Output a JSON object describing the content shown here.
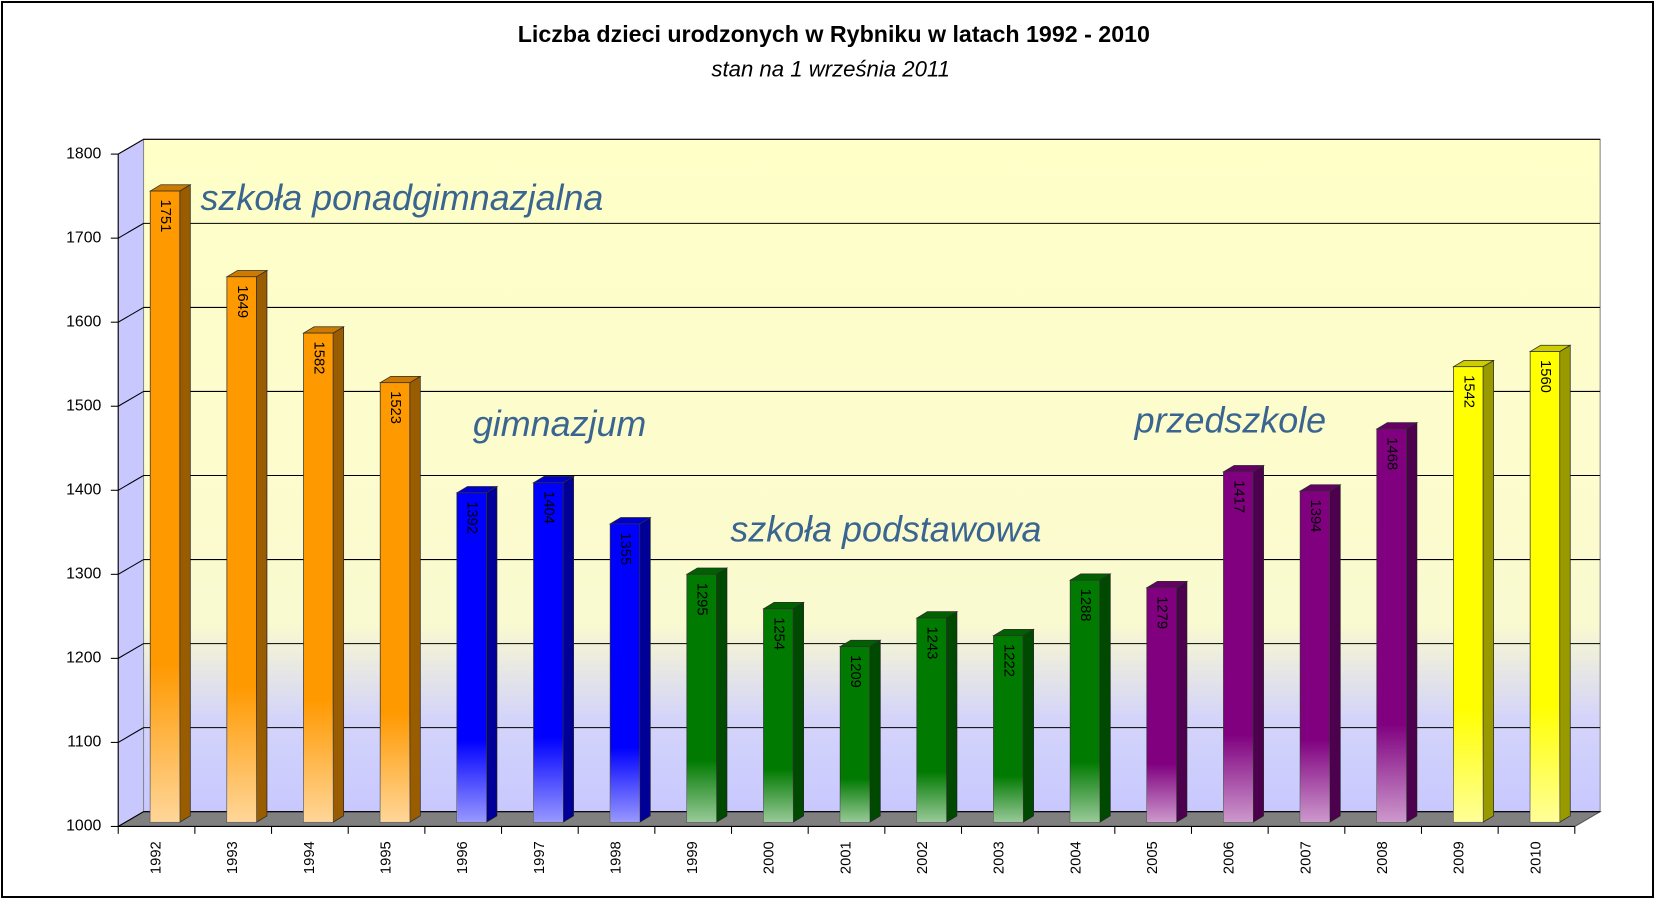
{
  "chart_data": {
    "type": "bar3d",
    "title": "Liczba dzieci urodzonych w Rybniku w latach 1992 - 2010",
    "subtitle": "stan na 1 września 2011",
    "categories": [
      "1992",
      "1993",
      "1994",
      "1995",
      "1996",
      "1997",
      "1998",
      "1999",
      "2000",
      "2001",
      "2002",
      "2003",
      "2004",
      "2005",
      "2006",
      "2007",
      "2008",
      "2009",
      "2010"
    ],
    "values": [
      1751,
      1649,
      1582,
      1523,
      1392,
      1404,
      1355,
      1295,
      1254,
      1209,
      1243,
      1222,
      1288,
      1279,
      1417,
      1394,
      1468,
      1542,
      1560
    ],
    "colors": [
      "#ff9900",
      "#ff9900",
      "#ff9900",
      "#ff9900",
      "#0000ff",
      "#0000ff",
      "#0000ff",
      "#007a00",
      "#007a00",
      "#007a00",
      "#007a00",
      "#007a00",
      "#007a00",
      "#800080",
      "#800080",
      "#800080",
      "#800080",
      "#ffff00",
      "#ffff00"
    ],
    "annotations": [
      "szkoła ponadgimnazjalna",
      "gimnazjum",
      "szkoła podstawowa",
      "przedszkole"
    ],
    "ylim": [
      1000,
      1800
    ],
    "yticks": [
      1000,
      1100,
      1200,
      1300,
      1400,
      1500,
      1600,
      1700,
      1800
    ],
    "grid": true
  }
}
